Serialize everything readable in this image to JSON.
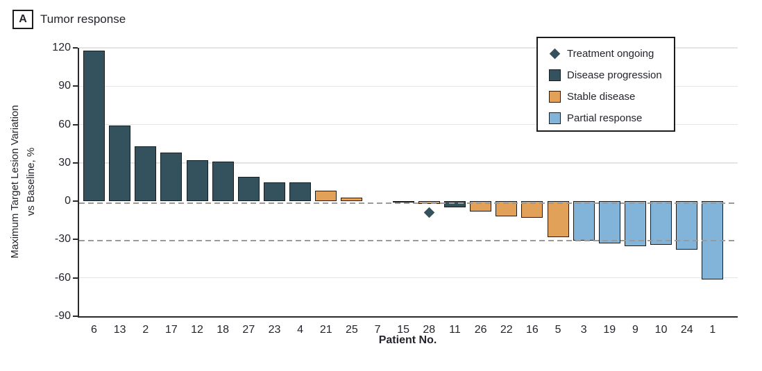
{
  "panel": {
    "label": "A",
    "title": "Tumor response"
  },
  "colors": {
    "Treatment ongoing": "#34515E",
    "Disease progression": "#34515E",
    "Stable disease": "#E2A158",
    "Partial response": "#82B4DA",
    "grid": "#E4E4E4",
    "dashed_reference": "#9A9A9A",
    "axis": "#2A2A2A",
    "bar_border": "#1B1B1B"
  },
  "legend": {
    "items": [
      {
        "label": "Treatment ongoing",
        "marker": "diamond"
      },
      {
        "label": "Disease progression",
        "marker": "square"
      },
      {
        "label": "Stable disease",
        "marker": "square"
      },
      {
        "label": "Partial response",
        "marker": "square"
      }
    ]
  },
  "chart_data": {
    "type": "bar",
    "title": "Tumor response",
    "xlabel": "Patient No.",
    "ylabel": "Maximum Target Lesion Variation vs Baseline, %",
    "ylabel_lines": [
      "Maximum Target Lesion Variation",
      "vs Baseline, %"
    ],
    "ylim": [
      -90,
      120
    ],
    "yticks": [
      120,
      90,
      60,
      30,
      0,
      -30,
      -60,
      -90
    ],
    "gridlines": [
      120,
      90,
      60,
      30,
      -60
    ],
    "reference_lines": [
      0,
      -30
    ],
    "legend_position": "top-right",
    "patients": [
      {
        "id": "6",
        "value": 118,
        "response": "Disease progression"
      },
      {
        "id": "13",
        "value": 59,
        "response": "Disease progression"
      },
      {
        "id": "2",
        "value": 43,
        "response": "Disease progression"
      },
      {
        "id": "17",
        "value": 38,
        "response": "Disease progression"
      },
      {
        "id": "12",
        "value": 32,
        "response": "Disease progression"
      },
      {
        "id": "18",
        "value": 31,
        "response": "Disease progression"
      },
      {
        "id": "27",
        "value": 19,
        "response": "Disease progression"
      },
      {
        "id": "23",
        "value": 15,
        "response": "Disease progression"
      },
      {
        "id": "4",
        "value": 15,
        "response": "Disease progression"
      },
      {
        "id": "21",
        "value": 8,
        "response": "Stable disease"
      },
      {
        "id": "25",
        "value": 3,
        "response": "Stable disease"
      },
      {
        "id": "7",
        "value": 0,
        "response": null
      },
      {
        "id": "15",
        "value": -1,
        "response": "Stable disease"
      },
      {
        "id": "28",
        "value": -2,
        "response": "Stable disease"
      },
      {
        "id": "11",
        "value": -5,
        "response": "Disease progression"
      },
      {
        "id": "26",
        "value": -8,
        "response": "Stable disease"
      },
      {
        "id": "22",
        "value": -12,
        "response": "Stable disease"
      },
      {
        "id": "16",
        "value": -13,
        "response": "Stable disease"
      },
      {
        "id": "5",
        "value": -28,
        "response": "Stable disease"
      },
      {
        "id": "3",
        "value": -31,
        "response": "Partial response"
      },
      {
        "id": "19",
        "value": -33,
        "response": "Partial response"
      },
      {
        "id": "9",
        "value": -35,
        "response": "Partial response"
      },
      {
        "id": "10",
        "value": -34,
        "response": "Partial response"
      },
      {
        "id": "24",
        "value": -38,
        "response": "Partial response"
      },
      {
        "id": "1",
        "value": -61,
        "response": "Partial response"
      }
    ],
    "treatment_ongoing": {
      "patient": "28",
      "marker_value": -9
    }
  }
}
